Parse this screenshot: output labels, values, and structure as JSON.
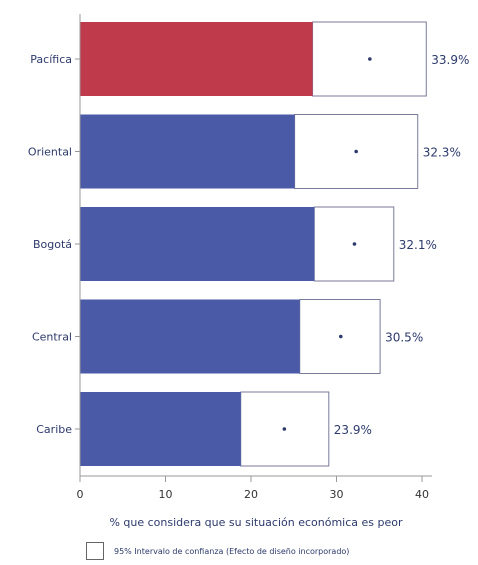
{
  "chart_data": {
    "type": "bar",
    "orientation": "horizontal",
    "categories": [
      "Pacífica",
      "Oriental",
      "Bogotá",
      "Central",
      "Caribe"
    ],
    "values": [
      33.9,
      32.3,
      32.1,
      30.5,
      23.9
    ],
    "value_labels": [
      "33.9%",
      "32.3%",
      "32.1%",
      "30.5%",
      "23.9%"
    ],
    "ci_lower": [
      27.2,
      25.1,
      27.4,
      25.7,
      18.8
    ],
    "ci_upper": [
      40.5,
      39.5,
      36.7,
      35.1,
      29.1
    ],
    "bar_colors": [
      "#bf3b4b",
      "#4a5aa7",
      "#4a5aa7",
      "#4a5aa7",
      "#4a5aa7"
    ],
    "xlim": [
      0,
      40
    ],
    "xticks": [
      "0",
      "10",
      "20",
      "30",
      "40"
    ],
    "xlabel": "% que considera que su situación económica es peor",
    "legend": {
      "label": "95% Intervalo de confianza (Efecto de diseño incorporado)"
    }
  }
}
